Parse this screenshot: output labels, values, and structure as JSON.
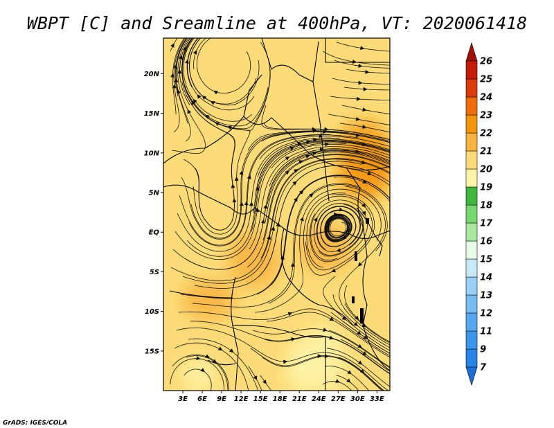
{
  "chart_data": {
    "type": "heatmap",
    "title": "WBPT [C] and Sreamline at 400hPa, VT: 2020061418",
    "variable": "Wet-bulb potential temperature",
    "units": "C",
    "level": "400hPa",
    "valid_time": "2020061418",
    "overlay": "streamlines",
    "xlim": [
      0,
      35
    ],
    "ylim": [
      -20,
      24.5
    ],
    "x_ticks": [
      {
        "value": 3,
        "label": "3E"
      },
      {
        "value": 6,
        "label": "6E"
      },
      {
        "value": 9,
        "label": "9E"
      },
      {
        "value": 12,
        "label": "12E"
      },
      {
        "value": 15,
        "label": "15E"
      },
      {
        "value": 18,
        "label": "18E"
      },
      {
        "value": 21,
        "label": "21E"
      },
      {
        "value": 24,
        "label": "24E"
      },
      {
        "value": 27,
        "label": "27E"
      },
      {
        "value": 30,
        "label": "30E"
      },
      {
        "value": 33,
        "label": "33E"
      }
    ],
    "y_ticks": [
      {
        "value": 20,
        "label": "20N"
      },
      {
        "value": 15,
        "label": "15N"
      },
      {
        "value": 10,
        "label": "10N"
      },
      {
        "value": 5,
        "label": "5N"
      },
      {
        "value": 0,
        "label": "EQ"
      },
      {
        "value": -5,
        "label": "5S"
      },
      {
        "value": -10,
        "label": "10S"
      },
      {
        "value": -15,
        "label": "15S"
      }
    ],
    "colorbar": {
      "levels": [
        "7",
        "9",
        "11",
        "12",
        "13",
        "14",
        "15",
        "16",
        "17",
        "18",
        "19",
        "20",
        "21",
        "22",
        "23",
        "24",
        "25",
        "26"
      ],
      "colors": [
        "#1e6ed8",
        "#2884e6",
        "#3c96eb",
        "#58a8ef",
        "#76bcf3",
        "#98d0f7",
        "#c8eaf8",
        "#e8fae8",
        "#a8e8a0",
        "#78d870",
        "#40b840",
        "#fff4a8",
        "#fcdc78",
        "#f8b440",
        "#f4960c",
        "#ee6e0c",
        "#dc3c0c",
        "#c41c08",
        "#a01006"
      ]
    },
    "regions": [
      {
        "lon": [
          0,
          35
        ],
        "lat": [
          -20,
          24.5
        ],
        "value": 20.6
      },
      {
        "lon": [
          9,
          21
        ],
        "lat": [
          14,
          20
        ],
        "value": 20.0
      },
      {
        "lon": [
          1,
          9
        ],
        "lat": [
          18,
          24
        ],
        "value": 20.0
      },
      {
        "lon": [
          27,
          35
        ],
        "lat": [
          4,
          14
        ],
        "value": 22.4
      },
      {
        "lon": [
          29,
          35
        ],
        "lat": [
          6,
          11
        ],
        "value": 22.8
      },
      {
        "lon": [
          10,
          18
        ],
        "lat": [
          -7,
          0
        ],
        "value": 21.8
      },
      {
        "lon": [
          3,
          11
        ],
        "lat": [
          -11,
          -6
        ],
        "value": 21.5
      },
      {
        "lon": [
          21,
          28
        ],
        "lat": [
          -20,
          -12
        ],
        "value": 19.6
      },
      {
        "lon": [
          19,
          24
        ],
        "lat": [
          -20,
          -14
        ],
        "value": 19.4
      },
      {
        "lon": [
          3,
          8
        ],
        "lat": [
          -20,
          -16
        ],
        "value": 19.8
      },
      {
        "lon": [
          21,
          29
        ],
        "lat": [
          -5,
          1
        ],
        "value": 21.2
      }
    ]
  },
  "credit": "GrADS: IGES/COLA"
}
